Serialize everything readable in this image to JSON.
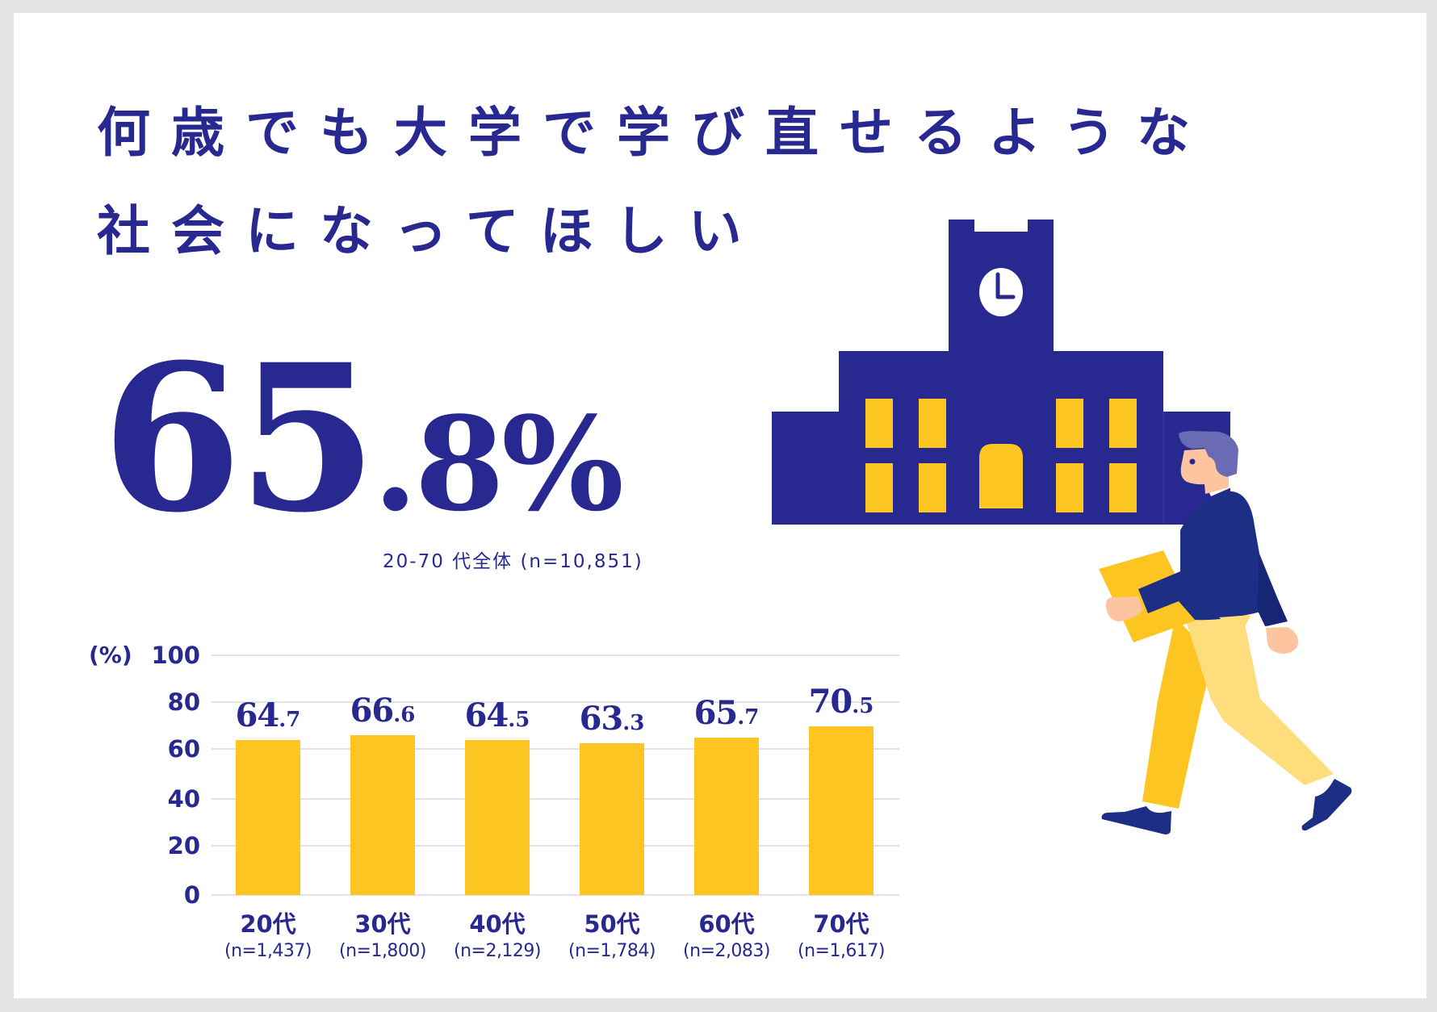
{
  "title": {
    "line1": "何歳でも大学で学び直せるような",
    "line2": "社会になってほしい"
  },
  "headline": {
    "integer": "65",
    "decimal": ".8%",
    "value": 65.8,
    "note": "20-70 代全体 (n=10,851)"
  },
  "colors": {
    "navy": "#282891",
    "bar_yellow": "#fdc521",
    "gridline": "#e2e2e2",
    "frame": "#e4e4e4"
  },
  "chart_data": {
    "type": "bar",
    "title": "",
    "xlabel": "",
    "ylabel": "(%)",
    "ylim": [
      0,
      100
    ],
    "yticks": [
      "100",
      "80",
      "60",
      "40",
      "20",
      "0"
    ],
    "grid": true,
    "legend": null,
    "categories": [
      "20代",
      "30代",
      "40代",
      "50代",
      "60代",
      "70代"
    ],
    "sample_sizes": [
      "(n=1,437)",
      "(n=1,800)",
      "(n=2,129)",
      "(n=1,784)",
      "(n=2,083)",
      "(n=1,617)"
    ],
    "values": [
      64.7,
      66.6,
      64.5,
      63.3,
      65.7,
      70.5
    ],
    "value_labels": [
      {
        "int": "64",
        "dec": ".7"
      },
      {
        "int": "66",
        "dec": ".6"
      },
      {
        "int": "64",
        "dec": ".5"
      },
      {
        "int": "63",
        "dec": ".3"
      },
      {
        "int": "65",
        "dec": ".7"
      },
      {
        "int": "70",
        "dec": ".5"
      }
    ]
  },
  "illustrations": {
    "building": "university-building-with-clock-tower",
    "person": "walking-man-carrying-folder"
  }
}
